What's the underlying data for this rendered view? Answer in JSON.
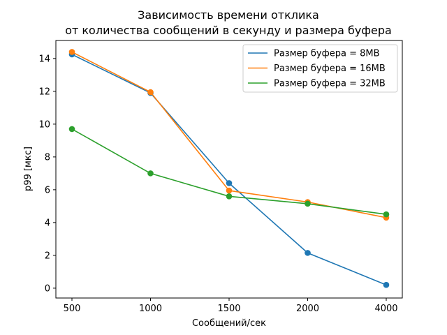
{
  "chart_data": {
    "type": "line",
    "title": "Зависимость времени отклика\nот количества сообщений в секунду и размера буфера",
    "xlabel": "Сообщений/сек",
    "ylabel": "p99 [мкс]",
    "categories": [
      "500",
      "1000",
      "1500",
      "2000",
      "4000"
    ],
    "ylim": [
      -0.6,
      15.1
    ],
    "yticks": [
      0,
      2,
      4,
      6,
      8,
      10,
      12,
      14
    ],
    "grid": false,
    "legend_position": "top-right",
    "series": [
      {
        "name": "Размер буфера = 8MB",
        "color": "#1f77b4",
        "values": [
          14.25,
          11.9,
          6.4,
          2.15,
          0.2
        ]
      },
      {
        "name": "Размер буфера = 16MB",
        "color": "#ff7f0e",
        "values": [
          14.4,
          11.95,
          5.95,
          5.25,
          4.3
        ]
      },
      {
        "name": "Размер буфера = 32MB",
        "color": "#2ca02c",
        "values": [
          9.7,
          7.0,
          5.6,
          5.15,
          4.5
        ]
      }
    ]
  }
}
